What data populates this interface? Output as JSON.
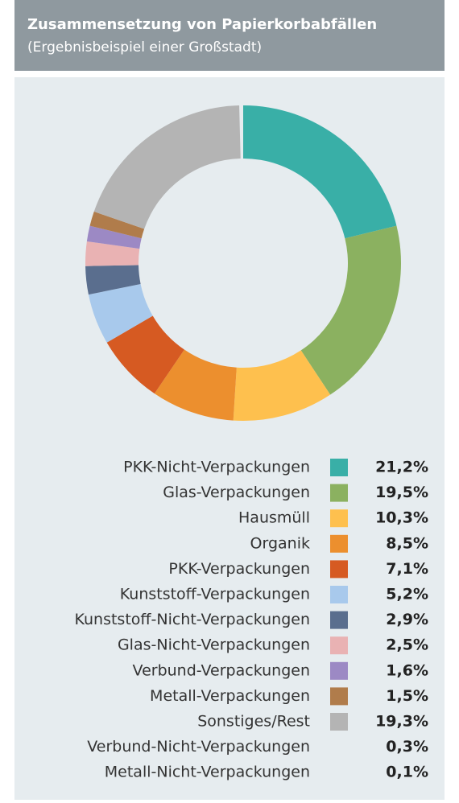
{
  "chart_data": {
    "type": "donut",
    "title": "Zusammensetzung von Papierkorbabfällen",
    "subtitle": "(Ergebnisbeispiel einer Großstadt)",
    "categories": [
      "PKK-Nicht-Verpackungen",
      "Glas-Verpackungen",
      "Hausmüll",
      "Organik",
      "PKK-Verpackungen",
      "Kunststoff-Verpackungen",
      "Kunststoff-Nicht-Verpackungen",
      "Glas-Nicht-Verpackungen",
      "Verbund-Verpackungen",
      "Metall-Verpackungen",
      "Sonstiges/Rest",
      "Verbund-Nicht-Verpackungen",
      "Metall-Nicht-Verpackungen"
    ],
    "values": [
      21.2,
      19.5,
      10.3,
      8.5,
      7.1,
      5.2,
      2.9,
      2.5,
      1.6,
      1.5,
      19.3,
      0.3,
      0.1
    ],
    "value_labels": [
      "21,2%",
      "19,5%",
      "10,3%",
      "8,5%",
      "7,1%",
      "5,2%",
      "2,9%",
      "2,5%",
      "1,6%",
      "1,5%",
      "19,3%",
      "0,3%",
      "0,1%"
    ],
    "colors": [
      "#39afa7",
      "#8bb160",
      "#fec04e",
      "#ec8f2e",
      "#d65a22",
      "#a8c9ec",
      "#5a6e8e",
      "#e9b2b3",
      "#9c89c4",
      "#b07c4b",
      "#b4b4b4",
      null,
      null
    ]
  }
}
